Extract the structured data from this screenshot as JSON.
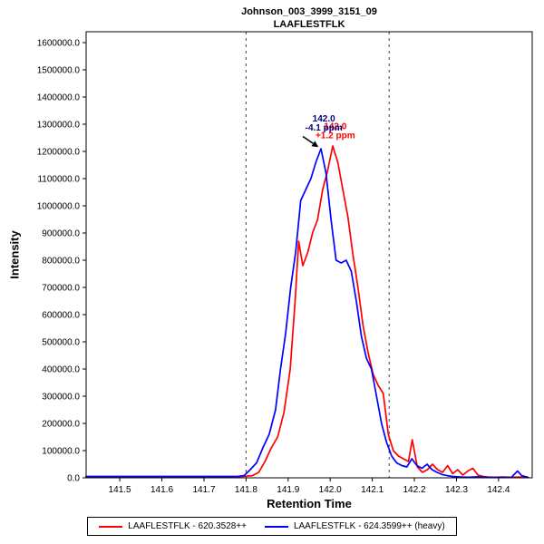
{
  "chart_data": {
    "type": "line",
    "title_lines": [
      "Johnson_003_3999_3151_09",
      "LAAFLESTFLK"
    ],
    "xlabel": "Retention Time",
    "ylabel": "Intensity",
    "xlim": [
      141.42,
      142.48
    ],
    "ylim": [
      0,
      1640000
    ],
    "x_ticks": [
      141.5,
      141.6,
      141.7,
      141.8,
      141.9,
      142.0,
      142.1,
      142.2,
      142.3,
      142.4
    ],
    "y_ticks": [
      0,
      100000,
      200000,
      300000,
      400000,
      500000,
      600000,
      700000,
      800000,
      900000,
      1000000,
      1100000,
      1200000,
      1300000,
      1400000,
      1500000,
      1600000
    ],
    "grid": false,
    "legend_position": "bottom",
    "boundaries": [
      141.8,
      142.14
    ],
    "series": [
      {
        "name": "LAAFLESTFLK - 620.3528++",
        "color": "#ff0000",
        "points": [
          [
            141.42,
            4000
          ],
          [
            141.46,
            4000
          ],
          [
            141.5,
            4000
          ],
          [
            141.55,
            4000
          ],
          [
            141.6,
            4000
          ],
          [
            141.65,
            4000
          ],
          [
            141.7,
            4000
          ],
          [
            141.75,
            4000
          ],
          [
            141.78,
            4000
          ],
          [
            141.8,
            6000
          ],
          [
            141.815,
            8000
          ],
          [
            141.83,
            20000
          ],
          [
            141.845,
            60000
          ],
          [
            141.86,
            110000
          ],
          [
            141.875,
            150000
          ],
          [
            141.89,
            240000
          ],
          [
            141.905,
            400000
          ],
          [
            141.917,
            660000
          ],
          [
            141.925,
            870000
          ],
          [
            141.935,
            780000
          ],
          [
            141.947,
            830000
          ],
          [
            141.958,
            900000
          ],
          [
            141.97,
            950000
          ],
          [
            141.982,
            1060000
          ],
          [
            141.994,
            1130000
          ],
          [
            142.006,
            1220000
          ],
          [
            142.018,
            1160000
          ],
          [
            142.03,
            1060000
          ],
          [
            142.042,
            960000
          ],
          [
            142.054,
            820000
          ],
          [
            142.066,
            700000
          ],
          [
            142.078,
            560000
          ],
          [
            142.09,
            460000
          ],
          [
            142.102,
            380000
          ],
          [
            142.114,
            340000
          ],
          [
            142.126,
            310000
          ],
          [
            142.138,
            160000
          ],
          [
            142.15,
            100000
          ],
          [
            142.162,
            80000
          ],
          [
            142.174,
            70000
          ],
          [
            142.186,
            60000
          ],
          [
            142.195,
            140000
          ],
          [
            142.207,
            40000
          ],
          [
            142.219,
            20000
          ],
          [
            142.231,
            30000
          ],
          [
            142.243,
            50000
          ],
          [
            142.255,
            30000
          ],
          [
            142.267,
            20000
          ],
          [
            142.279,
            45000
          ],
          [
            142.291,
            15000
          ],
          [
            142.303,
            30000
          ],
          [
            142.315,
            10000
          ],
          [
            142.327,
            25000
          ],
          [
            142.339,
            35000
          ],
          [
            142.351,
            10000
          ],
          [
            142.363,
            5000
          ],
          [
            142.375,
            3000
          ],
          [
            142.39,
            2000
          ],
          [
            142.41,
            3000
          ],
          [
            142.43,
            2000
          ],
          [
            142.45,
            3000
          ],
          [
            142.47,
            2000
          ]
        ]
      },
      {
        "name": "LAAFLESTFLK - 624.3599++ (heavy)",
        "color": "#0000ff",
        "points": [
          [
            141.42,
            5000
          ],
          [
            141.46,
            5000
          ],
          [
            141.5,
            5000
          ],
          [
            141.55,
            5000
          ],
          [
            141.6,
            5000
          ],
          [
            141.65,
            5000
          ],
          [
            141.7,
            5000
          ],
          [
            141.75,
            5000
          ],
          [
            141.78,
            5000
          ],
          [
            141.795,
            8000
          ],
          [
            141.81,
            30000
          ],
          [
            141.825,
            55000
          ],
          [
            141.84,
            110000
          ],
          [
            141.855,
            160000
          ],
          [
            141.87,
            250000
          ],
          [
            141.882,
            400000
          ],
          [
            141.894,
            530000
          ],
          [
            141.906,
            700000
          ],
          [
            141.918,
            830000
          ],
          [
            141.93,
            1020000
          ],
          [
            141.942,
            1060000
          ],
          [
            141.954,
            1100000
          ],
          [
            141.966,
            1160000
          ],
          [
            141.978,
            1210000
          ],
          [
            141.99,
            1120000
          ],
          [
            142.002,
            950000
          ],
          [
            142.014,
            800000
          ],
          [
            142.026,
            790000
          ],
          [
            142.038,
            800000
          ],
          [
            142.05,
            760000
          ],
          [
            142.062,
            650000
          ],
          [
            142.074,
            520000
          ],
          [
            142.086,
            440000
          ],
          [
            142.098,
            400000
          ],
          [
            142.11,
            300000
          ],
          [
            142.122,
            200000
          ],
          [
            142.134,
            130000
          ],
          [
            142.146,
            80000
          ],
          [
            142.158,
            55000
          ],
          [
            142.17,
            45000
          ],
          [
            142.182,
            40000
          ],
          [
            142.194,
            70000
          ],
          [
            142.206,
            45000
          ],
          [
            142.218,
            35000
          ],
          [
            142.23,
            50000
          ],
          [
            142.242,
            30000
          ],
          [
            142.254,
            20000
          ],
          [
            142.266,
            12000
          ],
          [
            142.278,
            8000
          ],
          [
            142.29,
            5000
          ],
          [
            142.31,
            3000
          ],
          [
            142.33,
            2000
          ],
          [
            142.35,
            4000
          ],
          [
            142.37,
            2000
          ],
          [
            142.39,
            1000
          ],
          [
            142.41,
            2000
          ],
          [
            142.43,
            1000
          ],
          [
            142.445,
            25000
          ],
          [
            142.455,
            8000
          ],
          [
            142.47,
            2000
          ]
        ]
      }
    ],
    "annotations": [
      {
        "x": 142.012,
        "y": 1282000,
        "color": "#ff0000",
        "lines": [
          "142.0",
          "+1.2 ppm"
        ]
      },
      {
        "x": 141.985,
        "y": 1310000,
        "color": "#000080",
        "lines": [
          "142.0",
          "-4.1 ppm"
        ]
      }
    ],
    "arrow": {
      "x1": 141.935,
      "y1": 1255000,
      "x2": 141.972,
      "y2": 1216000
    }
  }
}
